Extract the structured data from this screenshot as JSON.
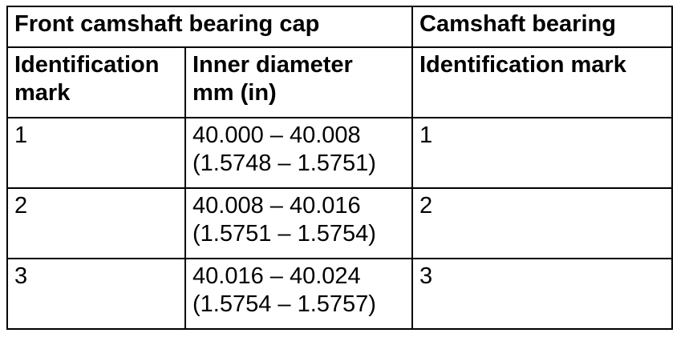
{
  "table": {
    "header_top": {
      "front_cap": "Front camshaft bearing cap",
      "camshaft_bearing": "Camshaft bearing"
    },
    "header_sub": {
      "id_mark_line1": "Identification",
      "id_mark_line2": "mark",
      "inner_diameter_line1": "Inner diameter",
      "inner_diameter_line2": "mm (in)",
      "bearing_id_mark": "Identification mark"
    },
    "rows": [
      {
        "cap_mark": "1",
        "diameter_mm": "40.000 – 40.008",
        "diameter_in": "(1.5748 – 1.5751)",
        "bearing_mark": "1"
      },
      {
        "cap_mark": "2",
        "diameter_mm": "40.008 – 40.016",
        "diameter_in": "(1.5751 – 1.5754)",
        "bearing_mark": "2"
      },
      {
        "cap_mark": "3",
        "diameter_mm": "40.016 – 40.024",
        "diameter_in": "(1.5754 – 1.5757)",
        "bearing_mark": "3"
      }
    ]
  }
}
